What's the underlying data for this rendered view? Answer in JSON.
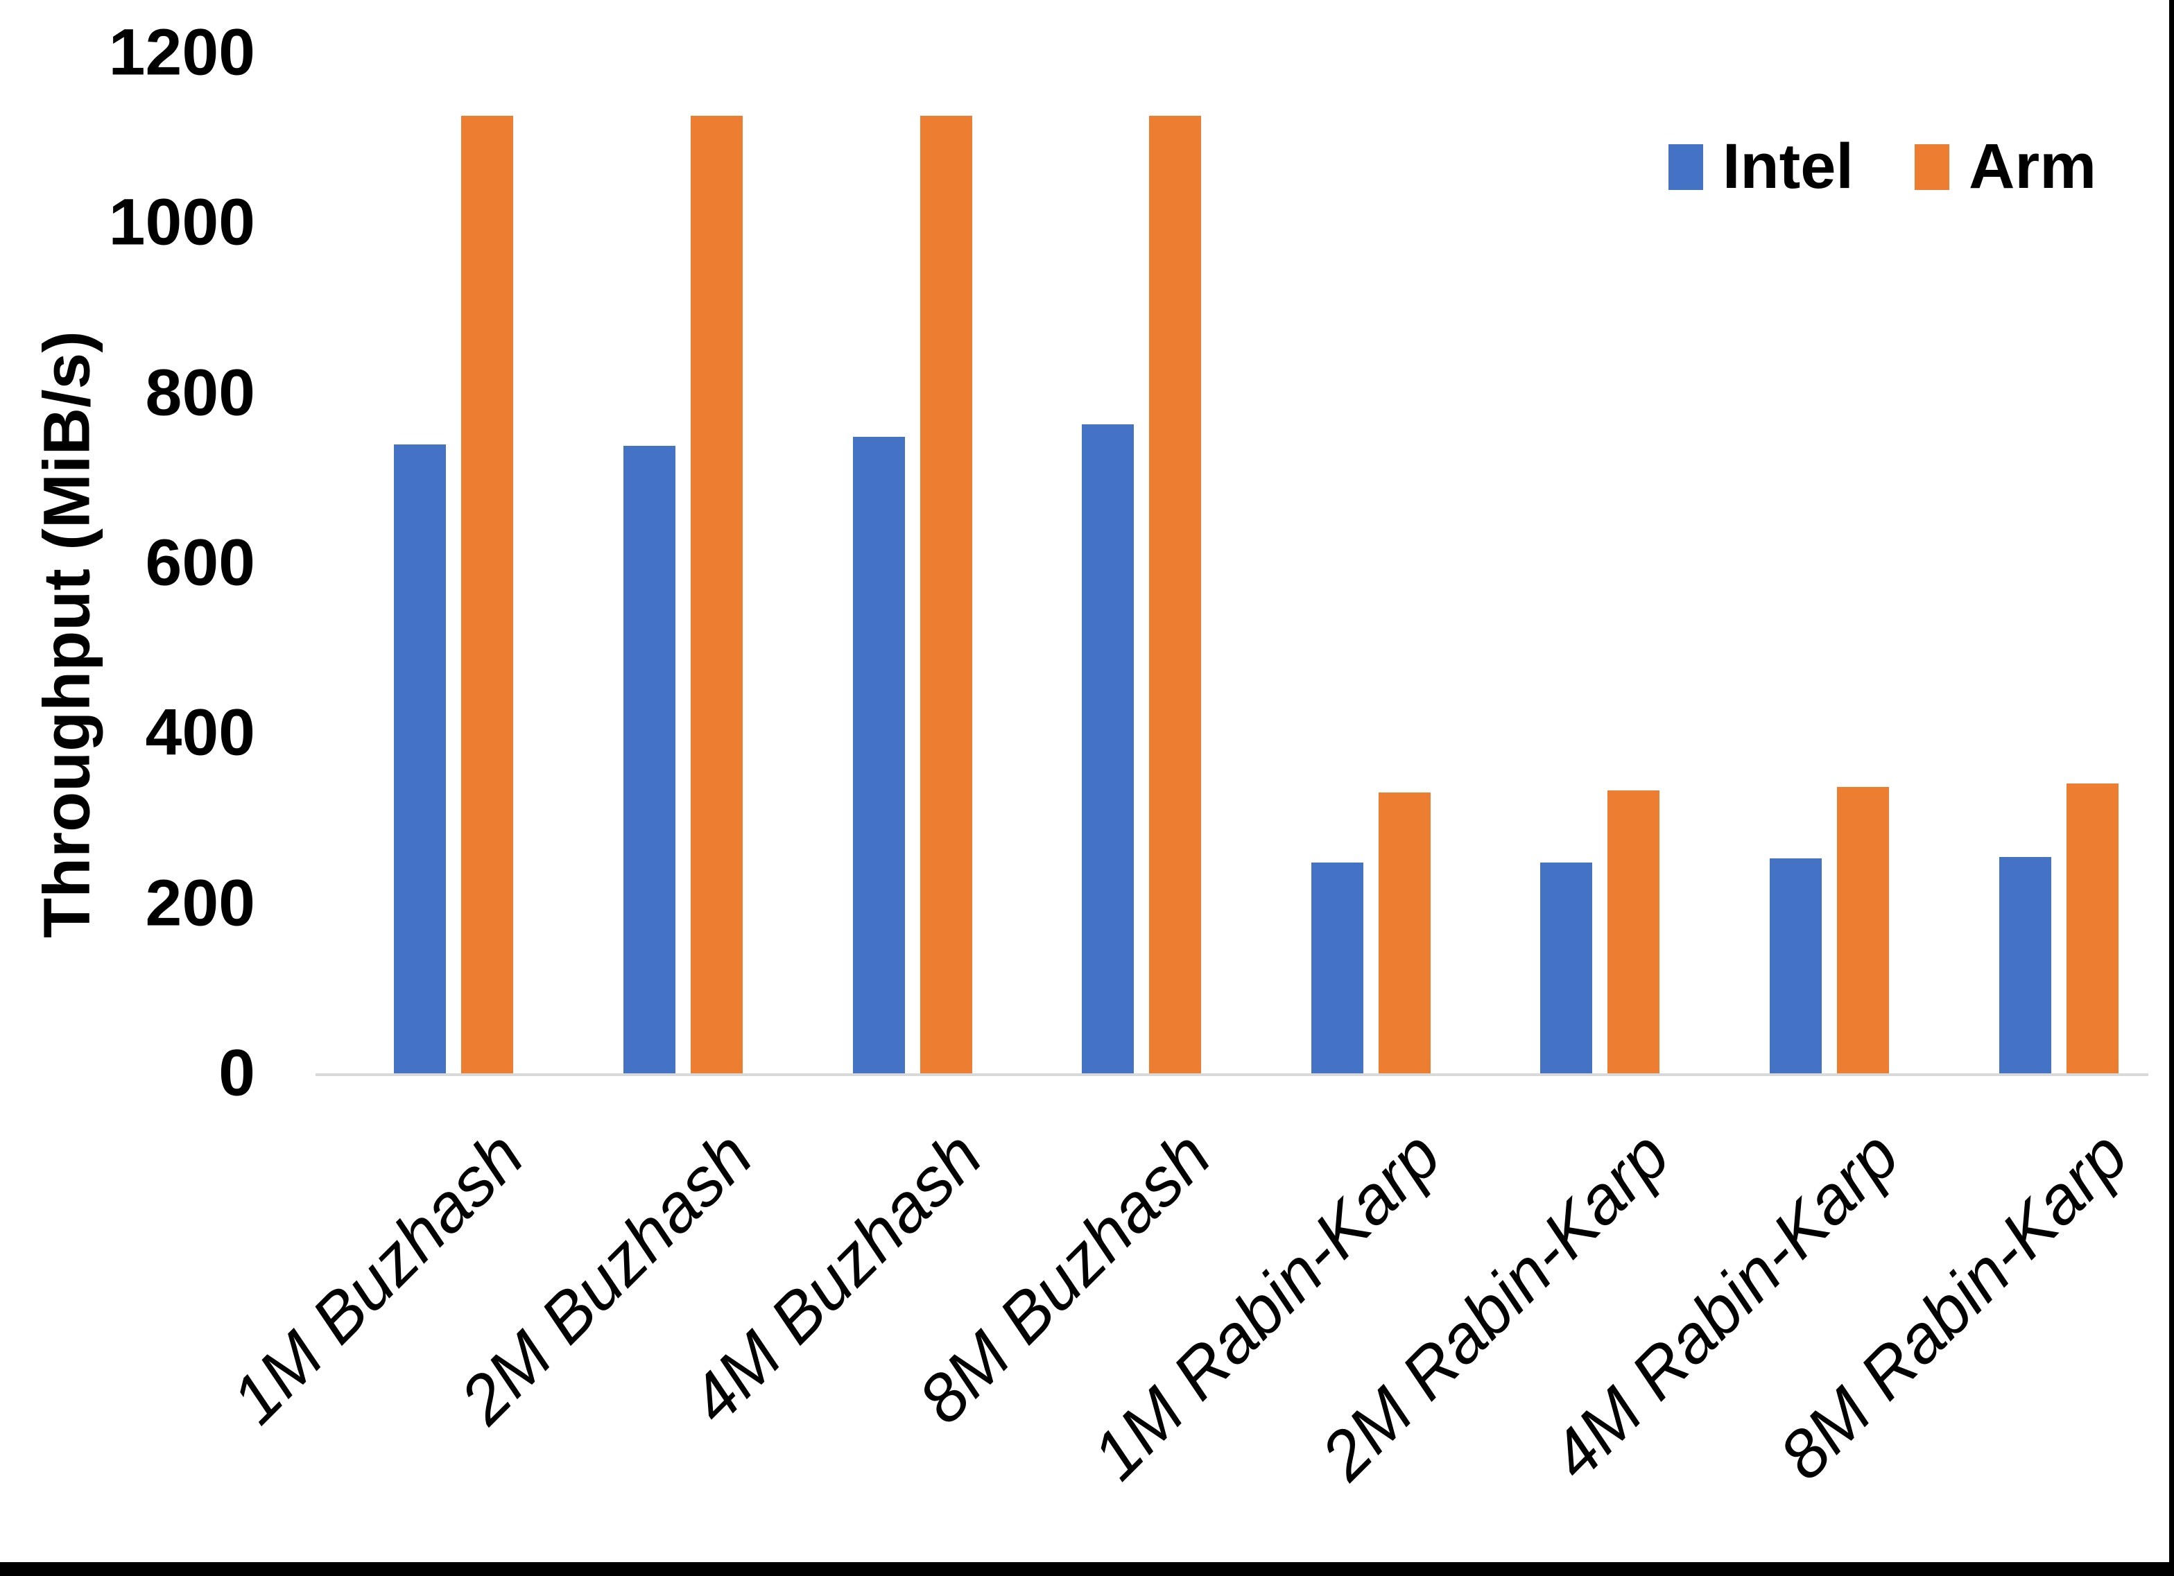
{
  "chart_data": {
    "type": "bar",
    "title": "",
    "xlabel": "",
    "ylabel": "Throughput (MiB/s)",
    "ylim": [
      0,
      1200
    ],
    "yticks": [
      0,
      200,
      400,
      600,
      800,
      1000,
      1200
    ],
    "grid": false,
    "legend_position": "top-right",
    "background": "#ffffff",
    "axis_line_color": "#d9d9d9",
    "text_color": "#000000",
    "screen_border_color": "#000000",
    "categories": [
      "1M Buzhash",
      "2M Buzhash",
      "4M Buzhash",
      "8M Buzhash",
      "1M Rabin-Karp",
      "2M Rabin-Karp",
      "4M Rabin-Karp",
      "8M Rabin-Karp"
    ],
    "series": [
      {
        "name": "Intel",
        "color": "#4472c4",
        "values": [
          739,
          738,
          748,
          763,
          248,
          248,
          253,
          254
        ]
      },
      {
        "name": "Arm",
        "color": "#ed7d31",
        "values": [
          1126,
          1126,
          1126,
          1126,
          330,
          333,
          337,
          341
        ]
      }
    ]
  }
}
